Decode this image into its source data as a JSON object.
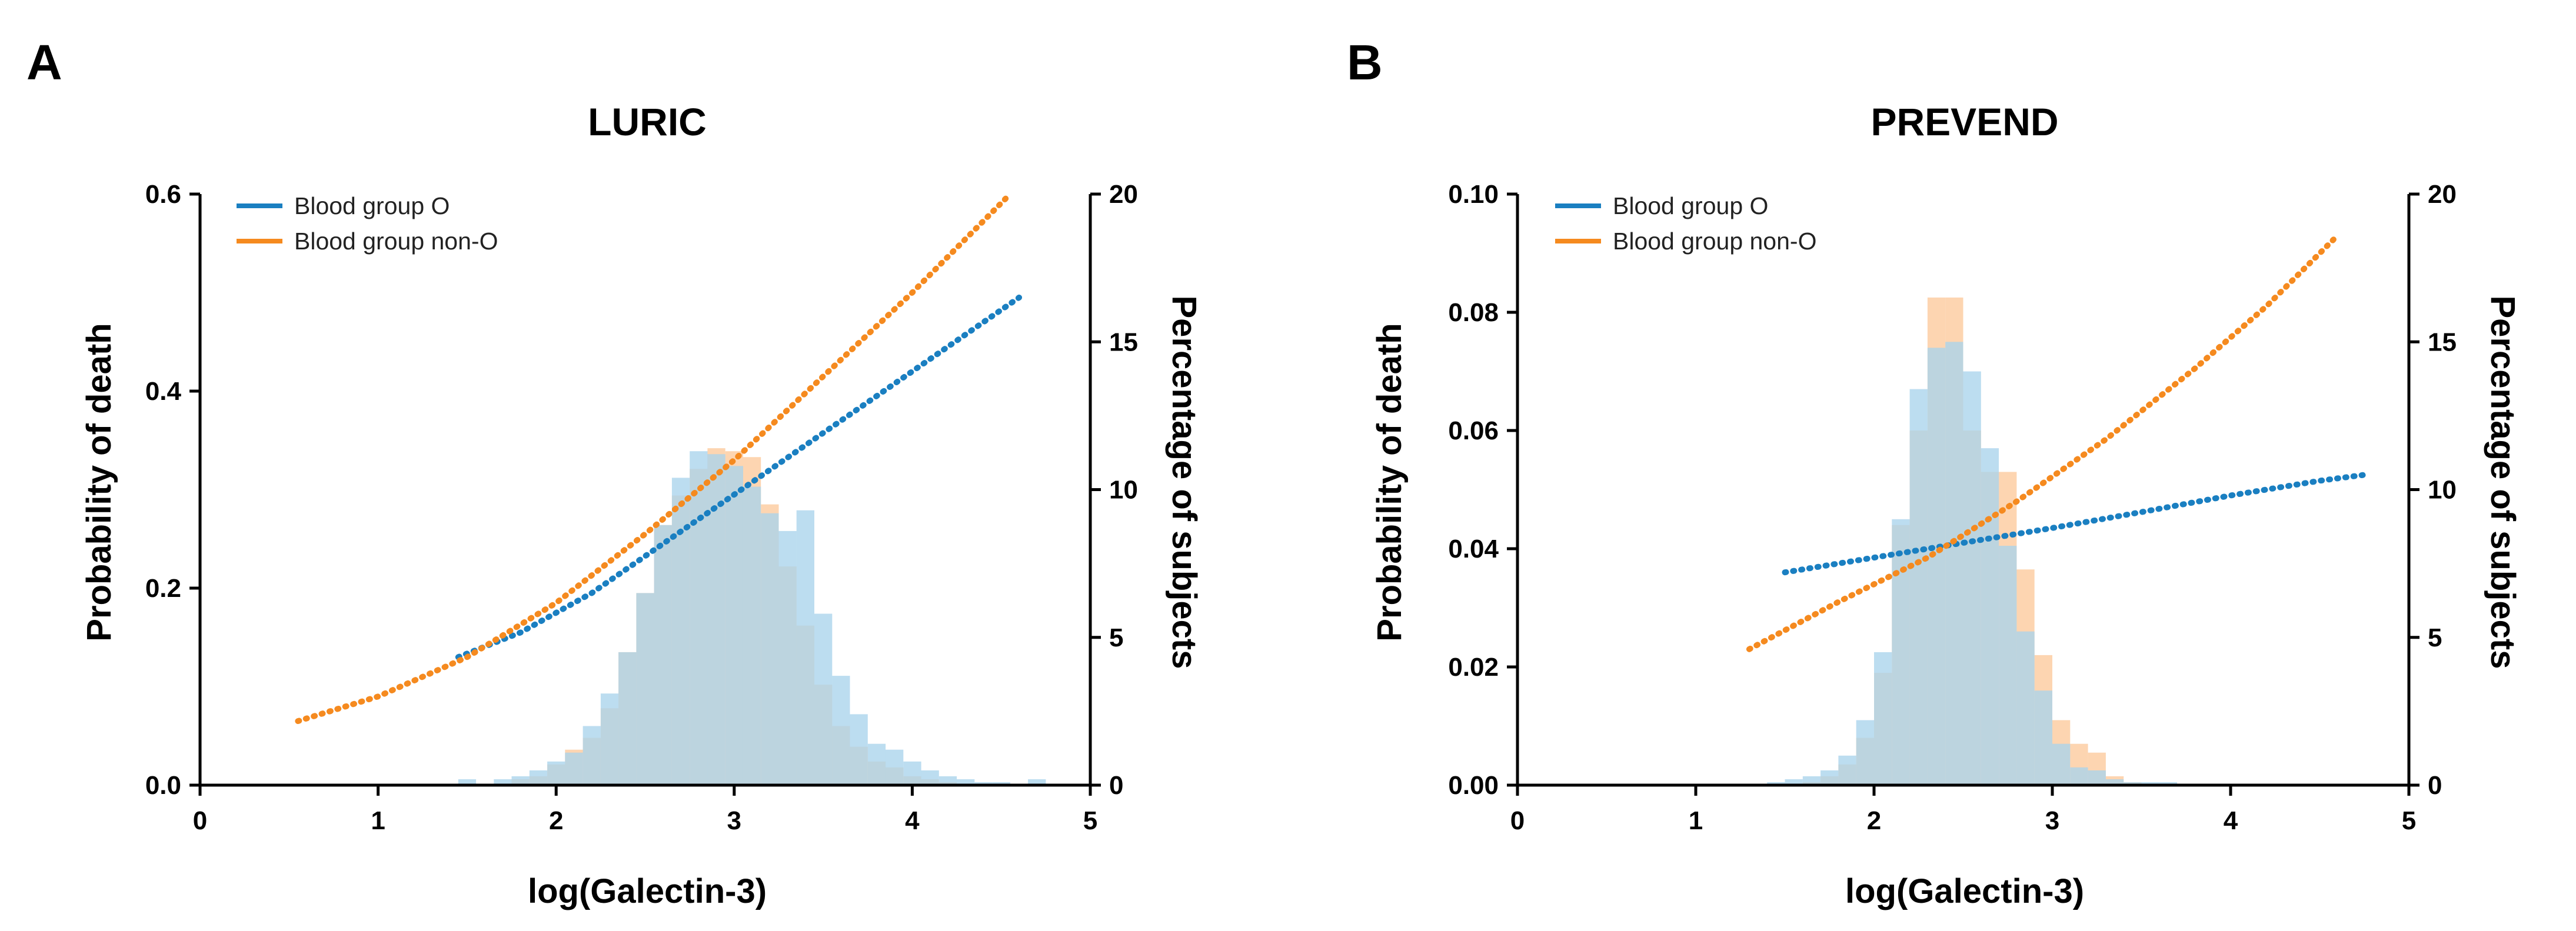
{
  "colors": {
    "blood_o": "#1a7fc1",
    "blood_non_o": "#f58a1f",
    "hist_o": "#a9d3ec",
    "hist_non_o": "#fdc99b",
    "axis": "#000000"
  },
  "chart_data": [
    {
      "type": "line+histogram",
      "panel_letter": "A",
      "title": "LURIC",
      "xlabel": "log(Galectin-3)",
      "ylabel": "Probability of death",
      "y2label": "Percentage of subjects",
      "xlim": [
        0,
        5
      ],
      "ylim": [
        0,
        0.6
      ],
      "y2lim": [
        0,
        20
      ],
      "xticks": [
        0,
        1,
        2,
        3,
        4,
        5
      ],
      "yticks": [
        0.0,
        0.2,
        0.4,
        0.6
      ],
      "ytick_labels": [
        "0.0",
        "0.2",
        "0.4",
        "0.6"
      ],
      "y2ticks": [
        0,
        5,
        10,
        15,
        20
      ],
      "legend": [
        "Blood group O",
        "Blood group non-O"
      ],
      "legend_position": "top-left",
      "series": [
        {
          "name": "Blood group O",
          "style": "dotted",
          "x": [
            1.45,
            1.8,
            2.2,
            2.6,
            3.0,
            3.4,
            3.8,
            4.2,
            4.6
          ],
          "y": [
            0.13,
            0.155,
            0.195,
            0.245,
            0.295,
            0.345,
            0.395,
            0.445,
            0.495
          ]
        },
        {
          "name": "Blood group non-O",
          "style": "dotted",
          "x": [
            0.55,
            1.0,
            1.5,
            2.0,
            2.5,
            3.0,
            3.5,
            4.0,
            4.55
          ],
          "y": [
            0.065,
            0.09,
            0.13,
            0.185,
            0.255,
            0.33,
            0.415,
            0.5,
            0.6
          ]
        }
      ],
      "histograms": {
        "bin_start": 1.45,
        "bin_width": 0.1,
        "Blood group O": [
          0.2,
          0,
          0.2,
          0.3,
          0.5,
          0.8,
          1.1,
          2.0,
          3.1,
          4.5,
          6.5,
          8.8,
          10.4,
          11.3,
          11.2,
          10.8,
          10.1,
          9.2,
          8.6,
          9.3,
          5.8,
          3.7,
          2.4,
          1.4,
          1.2,
          0.8,
          0.5,
          0.3,
          0.2,
          0.1,
          0.1,
          0,
          0.2,
          0,
          0,
          0,
          0,
          0,
          0,
          0,
          0,
          0,
          0,
          0,
          0,
          0
        ],
        "Blood group non-O": [
          0,
          0,
          0,
          0.2,
          0.3,
          0.7,
          1.2,
          1.6,
          2.6,
          4.5,
          6.5,
          8.8,
          9.8,
          10.7,
          11.4,
          11.3,
          11.1,
          9.5,
          7.4,
          5.4,
          3.4,
          2.0,
          1.3,
          0.8,
          0.6,
          0.3,
          0.2,
          0.1,
          0,
          0,
          0,
          0,
          0,
          0,
          0,
          0,
          0,
          0,
          0,
          0,
          0,
          0,
          0,
          0,
          0,
          0
        ]
      }
    },
    {
      "type": "line+histogram",
      "panel_letter": "B",
      "title": "PREVEND",
      "xlabel": "log(Galectin-3)",
      "ylabel": "Probability of death",
      "y2label": "Percentage of subjects",
      "xlim": [
        0,
        5
      ],
      "ylim": [
        0,
        0.1
      ],
      "y2lim": [
        0,
        20
      ],
      "xticks": [
        0,
        1,
        2,
        3,
        4,
        5
      ],
      "yticks": [
        0.0,
        0.02,
        0.04,
        0.06,
        0.08,
        0.1
      ],
      "ytick_labels": [
        "0.00",
        "0.02",
        "0.04",
        "0.06",
        "0.08",
        "0.10"
      ],
      "y2ticks": [
        0,
        5,
        10,
        15,
        20
      ],
      "legend": [
        "Blood group O",
        "Blood group non-O"
      ],
      "legend_position": "top-left",
      "series": [
        {
          "name": "Blood group O",
          "style": "dotted",
          "x": [
            1.5,
            2.0,
            2.5,
            3.0,
            3.5,
            4.0,
            4.5,
            4.75
          ],
          "y": [
            0.036,
            0.0385,
            0.041,
            0.0435,
            0.0462,
            0.049,
            0.0515,
            0.0525
          ]
        },
        {
          "name": "Blood group non-O",
          "style": "dotted",
          "x": [
            1.3,
            1.8,
            2.3,
            2.8,
            3.3,
            3.8,
            4.2,
            4.6
          ],
          "y": [
            0.023,
            0.031,
            0.0385,
            0.048,
            0.0585,
            0.0705,
            0.081,
            0.093
          ]
        }
      ],
      "histograms": {
        "bin_start": 1.4,
        "bin_width": 0.1,
        "Blood group O": [
          0.1,
          0.2,
          0.3,
          0.5,
          1.0,
          2.2,
          4.5,
          9.0,
          13.4,
          14.8,
          15.0,
          14.0,
          11.4,
          8.1,
          5.2,
          3.2,
          1.4,
          0.6,
          0.5,
          0.2,
          0.1,
          0.1,
          0.1,
          0,
          0,
          0,
          0,
          0,
          0,
          0,
          0,
          0,
          0,
          0,
          0
        ],
        "Blood group non-O": [
          0,
          0,
          0.1,
          0.3,
          0.7,
          1.6,
          3.8,
          8.8,
          12.0,
          16.5,
          16.5,
          12.0,
          10.6,
          10.6,
          7.3,
          4.4,
          2.2,
          1.4,
          1.1,
          0.3,
          0.1,
          0,
          0,
          0,
          0,
          0,
          0,
          0,
          0,
          0,
          0,
          0,
          0,
          0,
          0
        ]
      }
    }
  ]
}
